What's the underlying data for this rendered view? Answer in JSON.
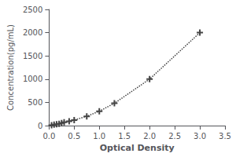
{
  "chart_data": {
    "type": "line",
    "x": [
      0.05,
      0.1,
      0.15,
      0.2,
      0.25,
      0.3,
      0.4,
      0.5,
      0.75,
      1.0,
      1.3,
      2.0,
      3.0
    ],
    "values": [
      10,
      20,
      30,
      40,
      55,
      70,
      95,
      120,
      200,
      310,
      480,
      1000,
      2000
    ],
    "xlabel": "Optical Density",
    "ylabel": "Concentration(pg/mL)",
    "xlim": [
      0,
      3.5
    ],
    "ylim": [
      0,
      2500
    ],
    "xticks": [
      {
        "value": 0,
        "label": "0.0"
      },
      {
        "value": 0.5,
        "label": "0.5"
      },
      {
        "value": 1.0,
        "label": "1.0"
      },
      {
        "value": 1.5,
        "label": "1.5"
      },
      {
        "value": 2.0,
        "label": "2.0"
      },
      {
        "value": 2.5,
        "label": "2.5"
      },
      {
        "value": 3.0,
        "label": "3.0"
      },
      {
        "value": 3.5,
        "label": "3.5"
      }
    ],
    "yticks": [
      0,
      500,
      1000,
      1500,
      2000,
      2500
    ],
    "color": "#444444",
    "marker": "plus",
    "line_style": "dotted",
    "grid": false
  }
}
